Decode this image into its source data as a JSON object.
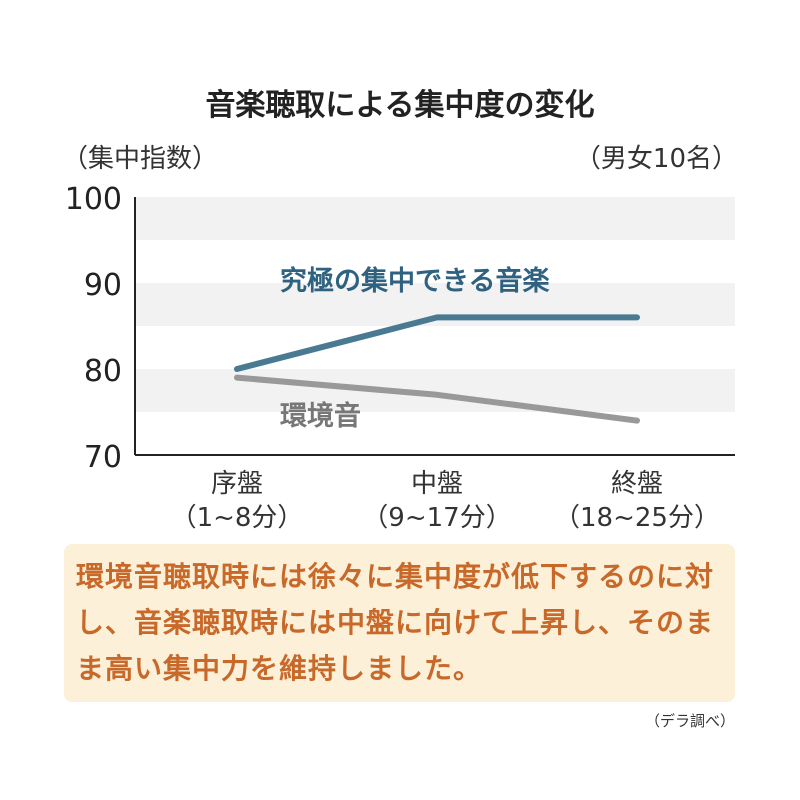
{
  "chart_data": {
    "type": "line",
    "title": "音楽聴取による集中度の変化",
    "ylabel": "（集中指数）",
    "note": "（男女10名）",
    "categories": [
      "序盤\n（1~8分）",
      "中盤\n（9~17分）",
      "終盤\n（18~25分）"
    ],
    "category_lines": [
      [
        "序盤",
        "（1~8分）"
      ],
      [
        "中盤",
        "（9~17分）"
      ],
      [
        "終盤",
        "（18~25分）"
      ]
    ],
    "ylim": [
      70,
      100
    ],
    "yticks": [
      "70",
      "80",
      "90",
      "100"
    ],
    "grid": "alternating horizontal bands",
    "series": [
      {
        "name": "究極の集中できる音楽",
        "values": [
          80,
          86,
          86
        ],
        "color": "#4a7a92"
      },
      {
        "name": "環境音",
        "values": [
          79,
          77,
          74
        ],
        "color": "#999999"
      }
    ]
  },
  "caption": "環境音聴取時には徐々に集中度が低下するのに対し、音楽聴取時には中盤に向けて上昇し、そのまま高い集中力を維持しました。",
  "source": "（デラ調べ）",
  "colors": {
    "caption_bg": "#fdf0d9",
    "caption_text": "#c8692a",
    "band": "#f2f2f2"
  }
}
